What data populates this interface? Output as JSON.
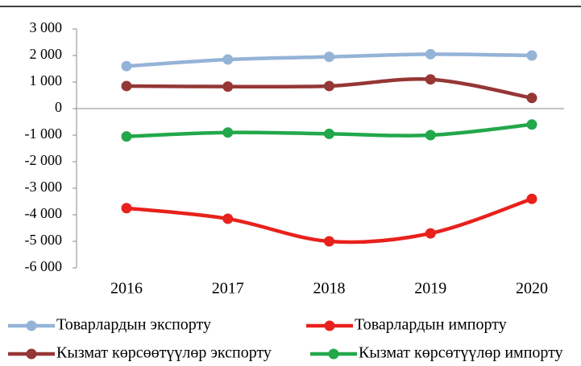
{
  "chart_data": {
    "type": "line",
    "categories": [
      "2016",
      "2017",
      "2018",
      "2019",
      "2020"
    ],
    "series": [
      {
        "name": "Товарлардын экспорту",
        "color": "#95b3d7",
        "values": [
          1600,
          1850,
          1950,
          2050,
          2000
        ]
      },
      {
        "name": "Товарлардын импорту",
        "color": "#e8211c",
        "values": [
          -3750,
          -4150,
          -5000,
          -4700,
          -3400
        ]
      },
      {
        "name": "Кызмат көрсөөтүүлөр экспорту",
        "color": "#953735",
        "values": [
          850,
          830,
          850,
          1100,
          400
        ]
      },
      {
        "name": "Кызмат көрсөтүүлөр импорту",
        "color": "#22a84a",
        "values": [
          -1050,
          -900,
          -950,
          -1000,
          -600
        ]
      }
    ],
    "ylim": [
      -6000,
      3000
    ],
    "yticks": [
      {
        "value": 3000,
        "label": "3 000"
      },
      {
        "value": 2000,
        "label": "2 000"
      },
      {
        "value": 1000,
        "label": "1 000"
      },
      0,
      {
        "value": -1000,
        "label": "-1 000"
      },
      {
        "value": -2000,
        "label": "-2 000"
      },
      {
        "value": -3000,
        "label": "-3 000"
      },
      {
        "value": -4000,
        "label": "-4 000"
      },
      {
        "value": -5000,
        "label": "-5 000"
      },
      {
        "value": -6000,
        "label": "-6 000"
      }
    ],
    "grid": false
  }
}
